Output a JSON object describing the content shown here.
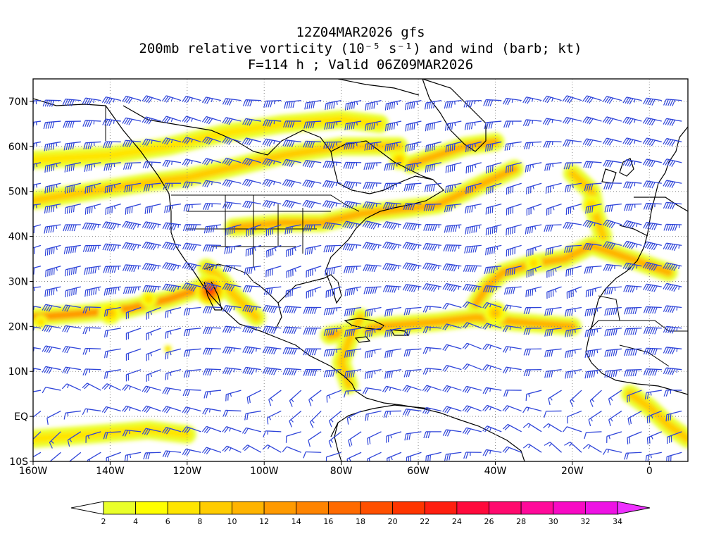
{
  "title": {
    "line1": "12Z04MAR2026 gfs",
    "line2": "200mb relative vorticity (10⁻⁵ s⁻¹) and wind (barb; kt)",
    "line3": "F=114 h ; Valid 06Z09MAR2026"
  },
  "map": {
    "lon_range": [
      -160,
      10
    ],
    "lat_range": [
      -10,
      75
    ],
    "lon_ticks": [
      "160W",
      "140W",
      "120W",
      "100W",
      "80W",
      "60W",
      "40W",
      "20W",
      "0"
    ],
    "lon_tick_values": [
      -160,
      -140,
      -120,
      -100,
      -80,
      -60,
      -40,
      -20,
      0
    ],
    "lat_ticks": [
      "70N",
      "60N",
      "50N",
      "40N",
      "30N",
      "20N",
      "10N",
      "EQ",
      "10S"
    ],
    "lat_tick_values": [
      70,
      60,
      50,
      40,
      30,
      20,
      10,
      0,
      -10
    ],
    "barb_color": "#2e44d9",
    "gridline_style": "dotted"
  },
  "colorbar": {
    "labels": [
      "2",
      "4",
      "6",
      "8",
      "10",
      "12",
      "14",
      "16",
      "18",
      "20",
      "22",
      "24",
      "26",
      "28",
      "30",
      "32",
      "34"
    ],
    "colors": [
      "#eaff2a",
      "#ffff00",
      "#ffe500",
      "#ffcc00",
      "#ffb400",
      "#ff9a00",
      "#ff8400",
      "#ff6a00",
      "#ff5000",
      "#ff3600",
      "#ff1f10",
      "#ff0a3c",
      "#ff0a6e",
      "#ff0a9a",
      "#f80ac4",
      "#ee12e4"
    ],
    "low_end_color": "#ffffff",
    "high_end_color": "#ee30ff"
  },
  "vorticity_bands": [
    {
      "pts": [
        [
          -160,
          48
        ],
        [
          -145,
          50
        ],
        [
          -130,
          52
        ],
        [
          -120,
          53
        ],
        [
          -110,
          55
        ],
        [
          -95,
          58
        ],
        [
          -80,
          60
        ],
        [
          -65,
          60
        ]
      ],
      "level": 1
    },
    {
      "pts": [
        [
          -160,
          57
        ],
        [
          -140,
          58
        ],
        [
          -125,
          60
        ],
        [
          -110,
          63
        ],
        [
          -95,
          65
        ],
        [
          -80,
          66
        ],
        [
          -70,
          65
        ]
      ],
      "level": 0
    },
    {
      "pts": [
        [
          -108,
          42
        ],
        [
          -95,
          43
        ],
        [
          -85,
          43
        ],
        [
          -75,
          45
        ],
        [
          -65,
          46
        ],
        [
          -55,
          47
        ],
        [
          -45,
          51
        ],
        [
          -35,
          55
        ]
      ],
      "level": 2
    },
    {
      "pts": [
        [
          -62,
          56
        ],
        [
          -55,
          58
        ],
        [
          -48,
          60
        ],
        [
          -40,
          61
        ]
      ],
      "level": 2
    },
    {
      "pts": [
        [
          -160,
          22
        ],
        [
          -145,
          23
        ],
        [
          -135,
          24
        ],
        [
          -125,
          26
        ],
        [
          -118,
          28
        ],
        [
          -112,
          31
        ]
      ],
      "level": 3
    },
    {
      "pts": [
        [
          -115,
          33
        ],
        [
          -112,
          31
        ],
        [
          -108,
          27
        ],
        [
          -102,
          22
        ]
      ],
      "level": 1
    },
    {
      "pts": [
        [
          -83,
          18
        ],
        [
          -70,
          20
        ],
        [
          -55,
          21
        ],
        [
          -45,
          22
        ],
        [
          -35,
          21
        ],
        [
          -20,
          20
        ]
      ],
      "level": 2
    },
    {
      "pts": [
        [
          -45,
          25
        ],
        [
          -42,
          29
        ],
        [
          -38,
          32
        ],
        [
          -30,
          34
        ],
        [
          -22,
          35
        ],
        [
          -15,
          38
        ],
        [
          -5,
          35
        ],
        [
          5,
          32
        ]
      ],
      "level": 2
    },
    {
      "pts": [
        [
          -20,
          54
        ],
        [
          -15,
          50
        ],
        [
          -14,
          45
        ],
        [
          -12,
          40
        ]
      ],
      "level": 1
    },
    {
      "pts": [
        [
          -75,
          22
        ],
        [
          -78,
          17
        ],
        [
          -80,
          12
        ],
        [
          -78,
          7
        ]
      ],
      "level": 1
    },
    {
      "pts": [
        [
          -160,
          -5
        ],
        [
          -145,
          -4
        ],
        [
          -130,
          -3
        ],
        [
          -120,
          -4
        ]
      ],
      "level": 0
    },
    {
      "pts": [
        [
          -5,
          5
        ],
        [
          0,
          2
        ],
        [
          5,
          -2
        ],
        [
          10,
          -5
        ]
      ],
      "level": 1
    }
  ],
  "vorticity_spots": [
    {
      "lon": -114,
      "lat": 28,
      "r": 4,
      "level": 10
    },
    {
      "lon": -140,
      "lat": 23,
      "r": 3,
      "level": 4
    },
    {
      "lon": -130,
      "lat": 26,
      "r": 2.2,
      "level": 3
    },
    {
      "lon": -158,
      "lat": 21,
      "r": 1.8,
      "level": 3
    },
    {
      "lon": -125,
      "lat": 15,
      "r": 1,
      "level": 4
    },
    {
      "lon": -65,
      "lat": 57,
      "r": 2.5,
      "level": 4
    },
    {
      "lon": -40,
      "lat": 23,
      "r": 3,
      "level": 4
    },
    {
      "lon": -30,
      "lat": 34,
      "r": 2.2,
      "level": 3
    },
    {
      "lon": -15,
      "lat": 47,
      "r": 2.5,
      "level": 3
    }
  ]
}
